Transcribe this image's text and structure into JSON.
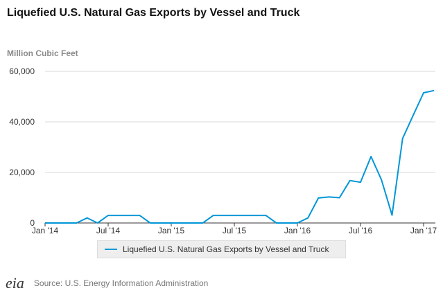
{
  "title": "Liquefied U.S. Natural Gas Exports by Vessel and Truck",
  "source": "Source: U.S. Energy Information Administration",
  "logo": "eia",
  "chart_data": {
    "type": "line",
    "title": "Liquefied U.S. Natural Gas Exports by Vessel and Truck",
    "ylabel": "Million Cubic Feet",
    "xlabel": "",
    "ylim": [
      0,
      60000
    ],
    "yticks": [
      "0",
      "20,000",
      "40,000",
      "60,000"
    ],
    "xticks": [
      "Jan '14",
      "Jul '14",
      "Jan '15",
      "Jul '15",
      "Jan '16",
      "Jul '16",
      "Jan '17"
    ],
    "grid": true,
    "legend_placement": "bottom",
    "color": "#0096d7",
    "x": [
      "2014-01",
      "2014-02",
      "2014-03",
      "2014-04",
      "2014-05",
      "2014-06",
      "2014-07",
      "2014-08",
      "2014-09",
      "2014-10",
      "2014-11",
      "2014-12",
      "2015-01",
      "2015-02",
      "2015-03",
      "2015-04",
      "2015-05",
      "2015-06",
      "2015-07",
      "2015-08",
      "2015-09",
      "2015-10",
      "2015-11",
      "2015-12",
      "2016-01",
      "2016-02",
      "2016-03",
      "2016-04",
      "2016-05",
      "2016-06",
      "2016-07",
      "2016-08",
      "2016-09",
      "2016-10",
      "2016-11",
      "2016-12",
      "2017-01",
      "2017-02"
    ],
    "series": [
      {
        "name": "Liquefied U.S. Natural Gas Exports by Vessel and Truck",
        "values": [
          0,
          0,
          0,
          0,
          2000,
          0,
          3000,
          3000,
          3000,
          3000,
          0,
          0,
          0,
          0,
          0,
          0,
          3000,
          3000,
          3000,
          3000,
          3000,
          3000,
          0,
          0,
          0,
          2000,
          9900,
          10300,
          10000,
          16800,
          16100,
          26300,
          17000,
          3100,
          33400,
          42500,
          51500,
          52400
        ]
      }
    ]
  }
}
